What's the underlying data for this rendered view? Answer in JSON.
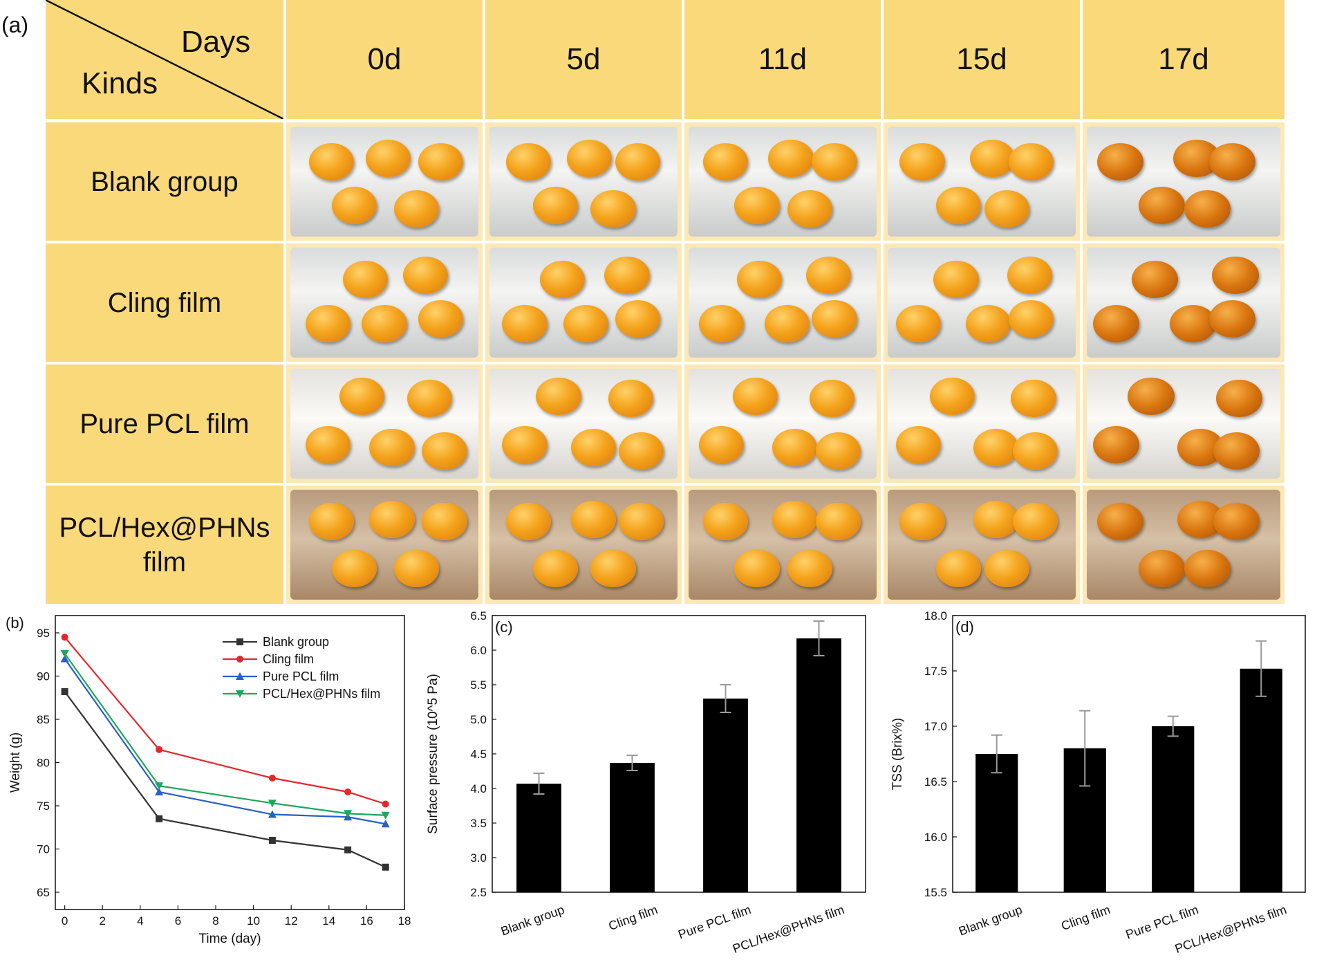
{
  "panel_a": {
    "label": "(a)",
    "corner_top": "Days",
    "corner_bottom": "Kinds",
    "days": [
      "0d",
      "5d",
      "11d",
      "15d",
      "17d"
    ],
    "kinds": [
      {
        "line1": "Blank group",
        "line2": ""
      },
      {
        "line1": "Cling film",
        "line2": ""
      },
      {
        "line1": "Pure PCL film",
        "line2": ""
      },
      {
        "line1": "PCL/Hex@PHNs",
        "line2": "film"
      }
    ],
    "photo_description_note": "photographs of loquat fruit in trays",
    "colors": {
      "header_bg": "#f9d97a",
      "photo_frame": "#fbe8b4"
    }
  },
  "chart_data": [
    {
      "id": "b",
      "panel_label": "(b)",
      "type": "line",
      "xlabel": "Time (day)",
      "ylabel": "Weight (g)",
      "xlim": [
        -0.5,
        18
      ],
      "ylim": [
        63,
        97
      ],
      "xticks": [
        0,
        2,
        4,
        6,
        8,
        10,
        12,
        14,
        16,
        18
      ],
      "yticks": [
        65,
        70,
        75,
        80,
        85,
        90,
        95
      ],
      "x": [
        0,
        5,
        11,
        15,
        17
      ],
      "legend_position": "top-right",
      "series": [
        {
          "name": "Blank group",
          "color": "#333333",
          "marker": "square",
          "values": [
            88.2,
            73.5,
            71.0,
            69.9,
            67.9
          ]
        },
        {
          "name": "Cling film",
          "color": "#e8252b",
          "marker": "circle",
          "values": [
            94.5,
            81.5,
            78.2,
            76.6,
            75.2
          ]
        },
        {
          "name": "Pure PCL film",
          "color": "#2a5fc4",
          "marker": "triangle-up",
          "values": [
            92.0,
            76.6,
            74.0,
            73.7,
            72.9
          ]
        },
        {
          "name": "PCL/Hex@PHNs film",
          "color": "#1fa65a",
          "marker": "triangle-down",
          "values": [
            92.6,
            77.3,
            75.3,
            74.1,
            73.9
          ]
        }
      ]
    },
    {
      "id": "c",
      "panel_label": "(c)",
      "type": "bar",
      "ylabel": "Surface pressure (10^5 Pa)",
      "xlabel": "",
      "categories": [
        "Blank group",
        "Cling film",
        "Pure PCL film",
        "PCL/Hex@PHNs film"
      ],
      "values": [
        4.07,
        4.37,
        5.3,
        6.17
      ],
      "errors": [
        0.15,
        0.11,
        0.2,
        0.25
      ],
      "ylim": [
        2.5,
        6.5
      ],
      "yticks": [
        "2.5",
        "3.0",
        "3.5",
        "4.0",
        "4.5",
        "5.0",
        "5.5",
        "6.0",
        "6.5"
      ],
      "bar_color": "#000000",
      "error_color": "#9a9a9a"
    },
    {
      "id": "d",
      "panel_label": "(d)",
      "type": "bar",
      "ylabel": "TSS (Brix%)",
      "xlabel": "",
      "categories": [
        "Blank group",
        "Cling film",
        "Pure PCL film",
        "PCL/Hex@PHNs film"
      ],
      "values": [
        16.75,
        16.8,
        17.0,
        17.52
      ],
      "errors": [
        0.17,
        0.34,
        0.09,
        0.25
      ],
      "ylim": [
        15.5,
        18.0
      ],
      "yticks": [
        "15.5",
        "16.0",
        "16.5",
        "17.0",
        "17.5",
        "18.0"
      ],
      "bar_color": "#000000",
      "error_color": "#9a9a9a"
    }
  ]
}
